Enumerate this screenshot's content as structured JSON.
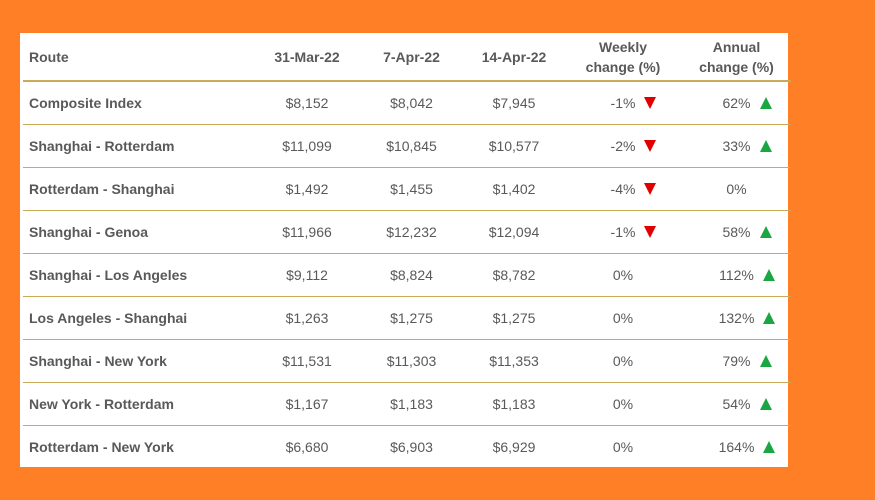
{
  "colors": {
    "background": "#FF7F27",
    "row_divider": "#C9A95A",
    "up_arrow": "#1BA644",
    "down_arrow": "#E00000",
    "text": "#595959"
  },
  "chart_data": {
    "type": "table",
    "columns": [
      "Route",
      "31-Mar-22",
      "7-Apr-22",
      "14-Apr-22",
      "Weekly change (%)",
      "Annual change (%)"
    ],
    "header": {
      "route": "Route",
      "d1": "31-Mar-22",
      "d2": "7-Apr-22",
      "d3": "14-Apr-22",
      "weekly_line1": "Weekly",
      "weekly_line2": "change (%)",
      "annual_line1": "Annual",
      "annual_line2": "change (%)"
    },
    "rows": [
      {
        "route": "Composite Index",
        "d1": "$8,152",
        "d2": "$8,042",
        "d3": "$7,945",
        "weekly": "-1%",
        "weekly_dir": "down",
        "annual": "62%",
        "annual_dir": "up"
      },
      {
        "route": "Shanghai - Rotterdam",
        "d1": "$11,099",
        "d2": "$10,845",
        "d3": "$10,577",
        "weekly": "-2%",
        "weekly_dir": "down",
        "annual": "33%",
        "annual_dir": "up"
      },
      {
        "route": "Rotterdam - Shanghai",
        "d1": "$1,492",
        "d2": "$1,455",
        "d3": "$1,402",
        "weekly": "-4%",
        "weekly_dir": "down",
        "annual": "0%",
        "annual_dir": "none"
      },
      {
        "route": "Shanghai - Genoa",
        "d1": "$11,966",
        "d2": "$12,232",
        "d3": "$12,094",
        "weekly": "-1%",
        "weekly_dir": "down",
        "annual": "58%",
        "annual_dir": "up"
      },
      {
        "route": "Shanghai - Los Angeles",
        "d1": "$9,112",
        "d2": "$8,824",
        "d3": "$8,782",
        "weekly": "0%",
        "weekly_dir": "none",
        "annual": "112%",
        "annual_dir": "up"
      },
      {
        "route": "Los Angeles - Shanghai",
        "d1": "$1,263",
        "d2": "$1,275",
        "d3": "$1,275",
        "weekly": "0%",
        "weekly_dir": "none",
        "annual": "132%",
        "annual_dir": "up"
      },
      {
        "route": "Shanghai - New York",
        "d1": "$11,531",
        "d2": "$11,303",
        "d3": "$11,353",
        "weekly": "0%",
        "weekly_dir": "none",
        "annual": "79%",
        "annual_dir": "up"
      },
      {
        "route": "New York - Rotterdam",
        "d1": "$1,167",
        "d2": "$1,183",
        "d3": "$1,183",
        "weekly": "0%",
        "weekly_dir": "none",
        "annual": "54%",
        "annual_dir": "up"
      },
      {
        "route": "Rotterdam - New York",
        "d1": "$6,680",
        "d2": "$6,903",
        "d3": "$6,929",
        "weekly": "0%",
        "weekly_dir": "none",
        "annual": "164%",
        "annual_dir": "up"
      }
    ]
  }
}
